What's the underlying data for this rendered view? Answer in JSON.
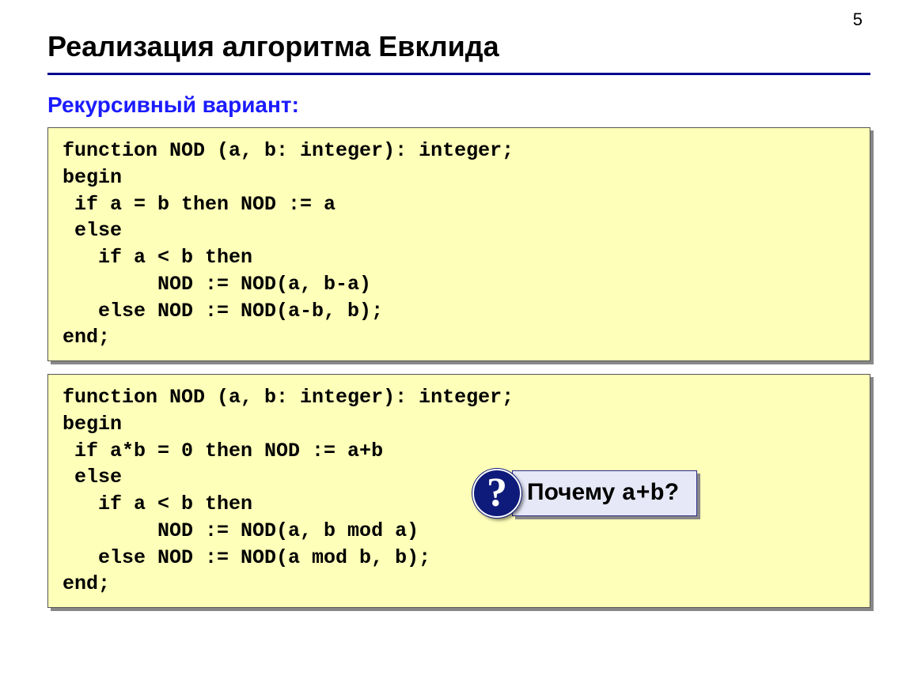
{
  "page_number": "5",
  "title": "Реализация алгоритма Евклида",
  "subtitle": "Рекурсивный вариант:",
  "code_block_1": "function NOD (a, b: integer): integer;\nbegin\n if a = b then NOD := a\n else\n   if a < b then\n        NOD := NOD(a, b-a)\n   else NOD := NOD(a-b, b);\nend;",
  "code_block_2": "function NOD (a, b: integer): integer;\nbegin\n if a*b = 0 then NOD := a+b\n else\n   if a < b then\n        NOD := NOD(a, b mod a)\n   else NOD := NOD(a mod b, b);\nend;",
  "callout": {
    "badge": "?",
    "text_prefix": "Почему ",
    "text_code": "a+b",
    "text_suffix": "?"
  },
  "colors": {
    "title_underline": "#00008b",
    "subtitle": "#1b1bff",
    "code_bg": "#feffb8",
    "code_border": "#555555",
    "shadow": "#888888",
    "callout_badge_bg": "#0f1b7a",
    "callout_box_bg": "#e6e8f7",
    "callout_box_border": "#2b2b8a",
    "text": "#000000",
    "white": "#ffffff"
  },
  "typography": {
    "title_fontsize": 36,
    "subtitle_fontsize": 28,
    "code_fontsize": 25,
    "callout_fontsize": 30,
    "page_number_fontsize": 22
  }
}
